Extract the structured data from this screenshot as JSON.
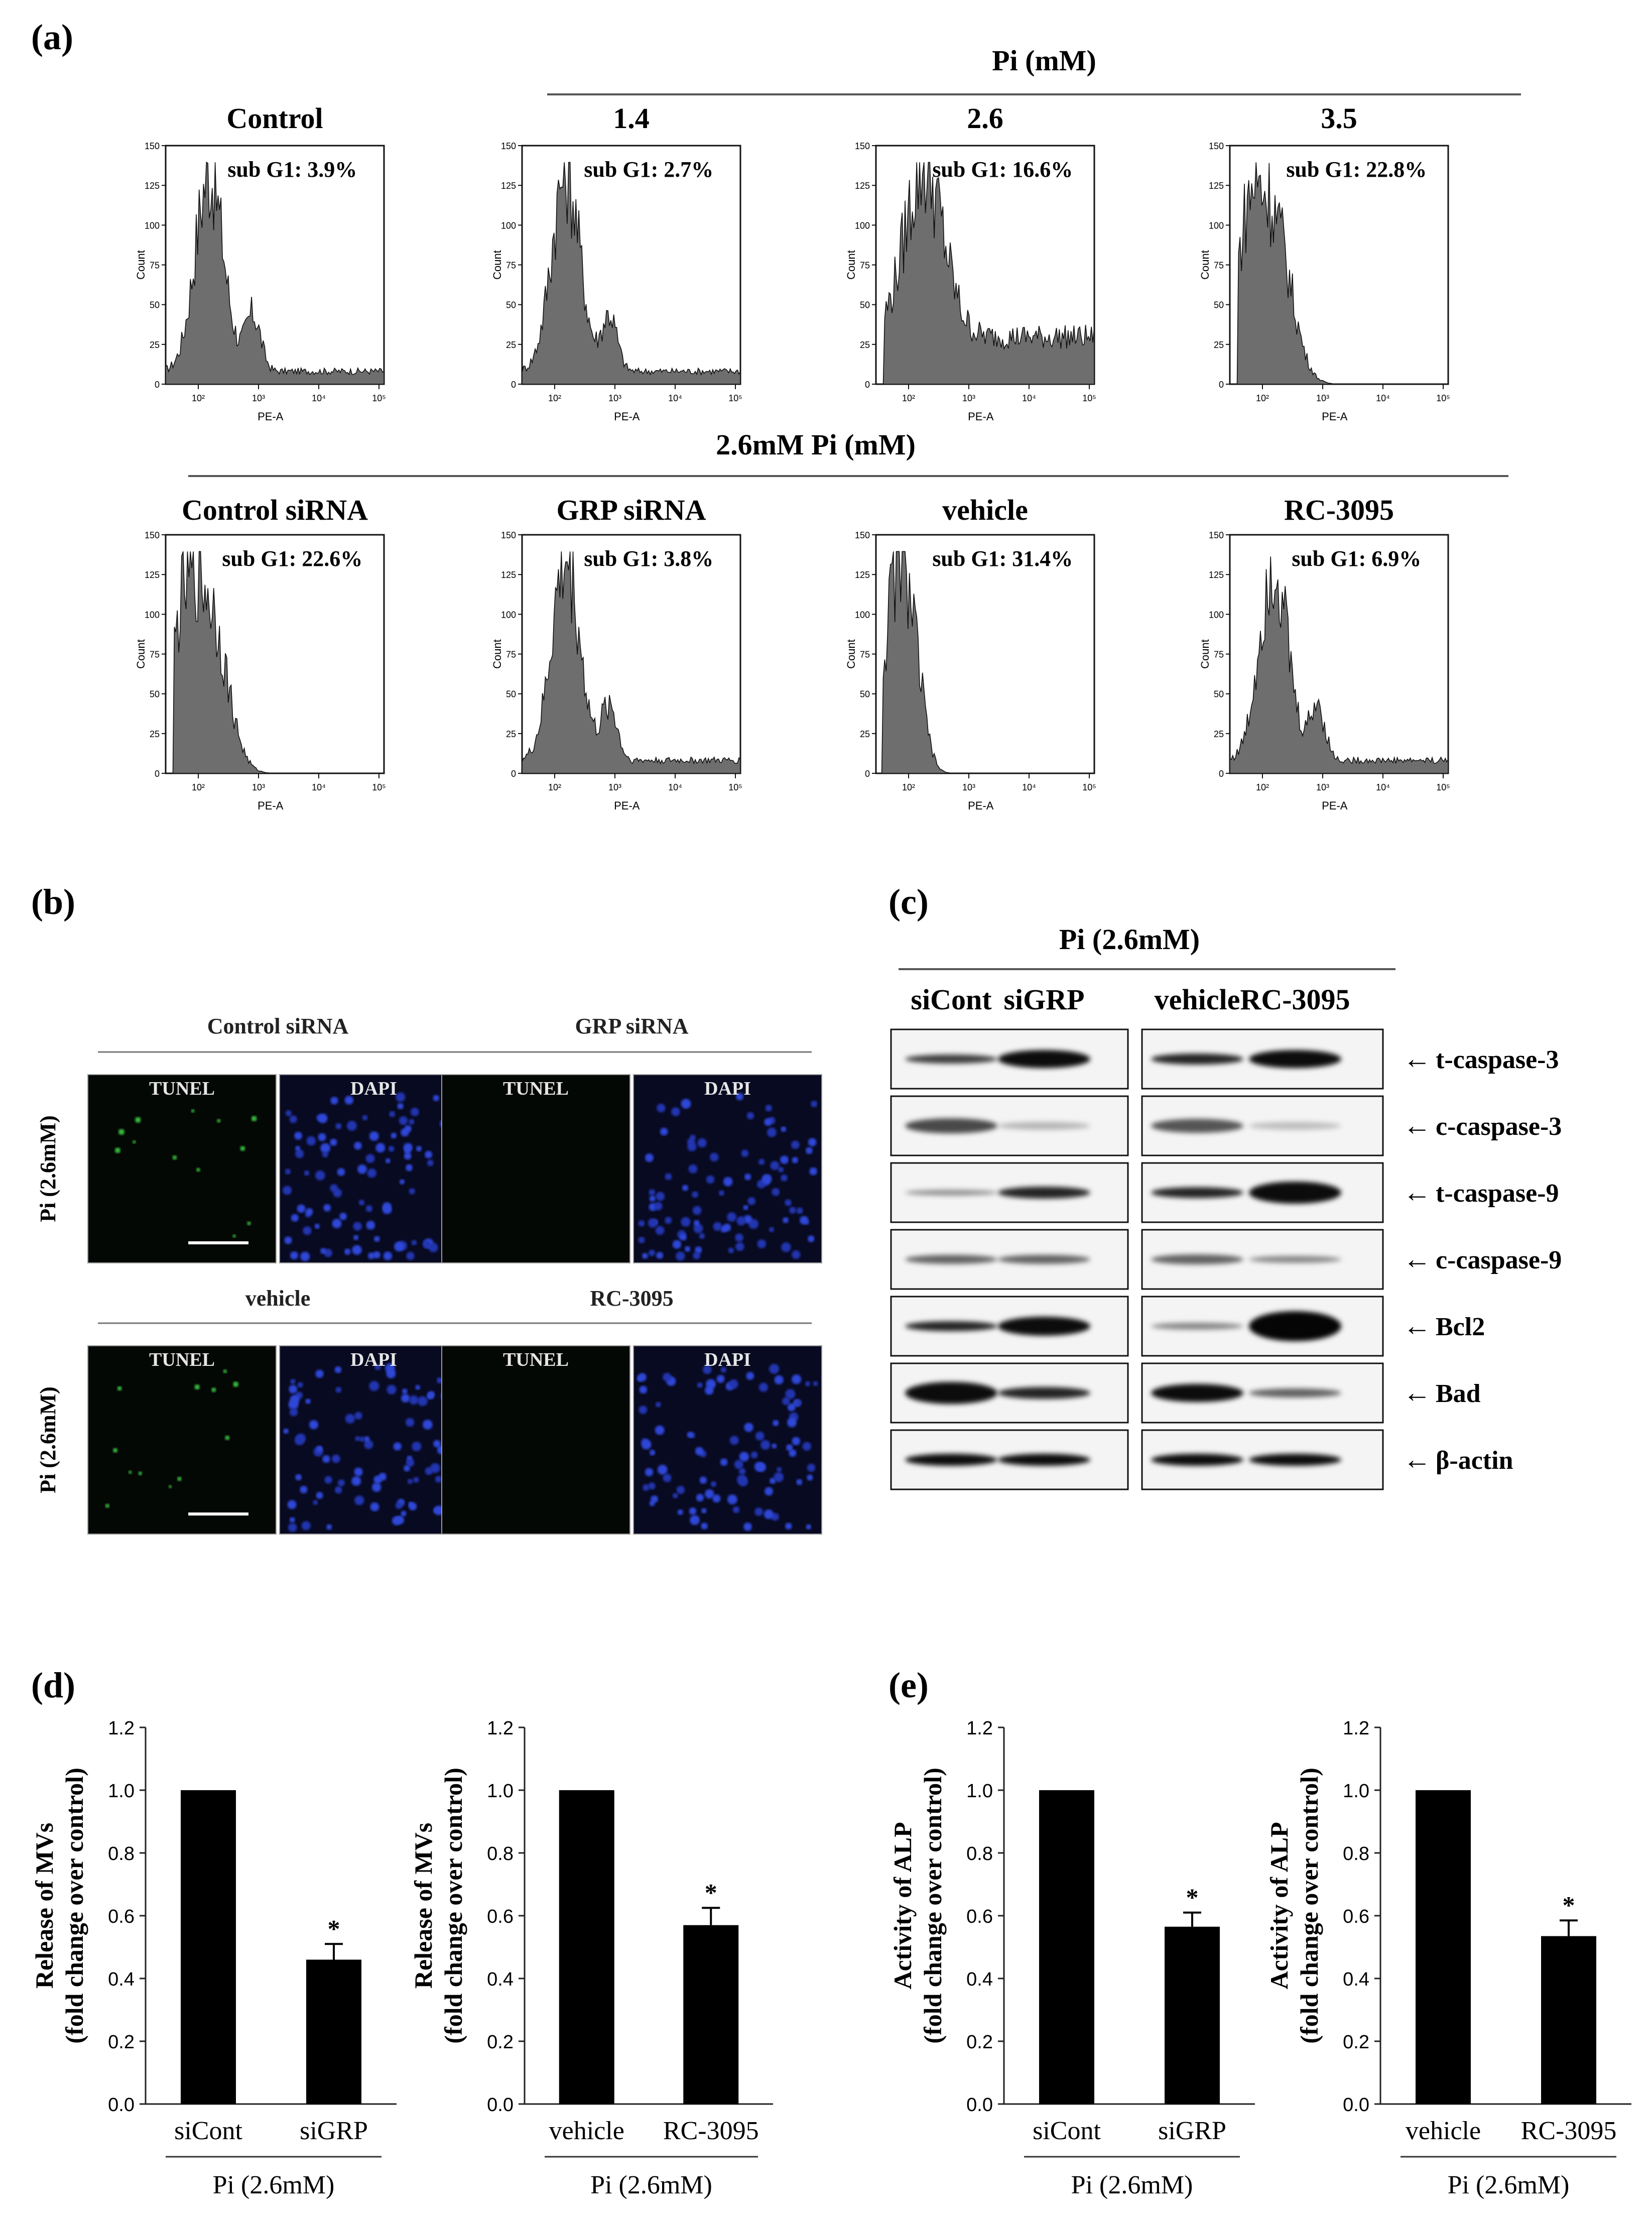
{
  "figure": {
    "panel_labels": {
      "a": "(a)",
      "b": "(b)",
      "c": "(c)",
      "d": "(d)",
      "e": "(e)"
    }
  },
  "panel_a": {
    "pi_header": "Pi (mM)",
    "second_header": "2.6mM Pi (mM)",
    "histograms": [
      {
        "title": "Control",
        "subg1": "sub G1: 3.9%",
        "shape": "normal"
      },
      {
        "title": "1.4",
        "subg1": "sub G1: 2.7%",
        "shape": "normal"
      },
      {
        "title": "2.6",
        "subg1": "sub G1: 16.6%",
        "shape": "apop1"
      },
      {
        "title": "3.5",
        "subg1": "sub G1: 22.8%",
        "shape": "apop2"
      },
      {
        "title": "Control siRNA",
        "subg1": "sub G1: 22.6%",
        "shape": "apop2"
      },
      {
        "title": "GRP siRNA",
        "subg1": "sub G1: 3.8%",
        "shape": "normal"
      },
      {
        "title": "vehicle",
        "subg1": "sub G1: 31.4%",
        "shape": "apop3"
      },
      {
        "title": "RC-3095",
        "subg1": "sub G1: 6.9%",
        "shape": "normal"
      }
    ],
    "y_axis_label": "Count",
    "y_ticks": [
      "0",
      "25",
      "50",
      "75",
      "100",
      "125",
      "150"
    ],
    "x_axis_label": "PE-A",
    "x_ticks": [
      "10²",
      "10³",
      "10⁴",
      "10⁵"
    ]
  },
  "panel_b": {
    "row_label": "Pi (2.6mM)",
    "groups": [
      "Control siRNA",
      "GRP siRNA",
      "vehicle",
      "RC-3095"
    ],
    "image_labels": {
      "tunel": "TUNEL",
      "dapi": "DAPI"
    }
  },
  "panel_c": {
    "header": "Pi (2.6mM)",
    "lanes": [
      "siCont",
      "siGRP",
      "vehicle",
      "RC-3095"
    ],
    "proteins": [
      "t-caspase-3",
      "c-caspase-3",
      "t-caspase-9",
      "c-caspase-9",
      "Bcl2",
      "Bad",
      "β-actin"
    ],
    "arrow": "←"
  },
  "chart_data": [
    {
      "type": "bar",
      "panel": "d",
      "categories": [
        "siCont",
        "siGRP"
      ],
      "values": [
        1.0,
        0.46
      ],
      "errors": [
        0,
        0.05
      ],
      "significance": [
        "",
        "*"
      ],
      "ylabel": "Release of MVs",
      "ylabel2": "(fold change over control)",
      "xgroup": "Pi (2.6mM)",
      "ylim": [
        0,
        1.2
      ],
      "yticks": [
        "0.0",
        "0.2",
        "0.4",
        "0.6",
        "0.8",
        "1.0",
        "1.2"
      ]
    },
    {
      "type": "bar",
      "panel": "d",
      "categories": [
        "vehicle",
        "RC-3095"
      ],
      "values": [
        1.0,
        0.57
      ],
      "errors": [
        0,
        0.055
      ],
      "significance": [
        "",
        "*"
      ],
      "ylabel": "Release of MVs",
      "ylabel2": "(fold change over control)",
      "xgroup": "Pi (2.6mM)",
      "ylim": [
        0,
        1.2
      ],
      "yticks": [
        "0.0",
        "0.2",
        "0.4",
        "0.6",
        "0.8",
        "1.0",
        "1.2"
      ]
    },
    {
      "type": "bar",
      "panel": "e",
      "categories": [
        "siCont",
        "siGRP"
      ],
      "values": [
        1.0,
        0.565
      ],
      "errors": [
        0,
        0.045
      ],
      "significance": [
        "",
        "*"
      ],
      "ylabel": "Activity of  ALP",
      "ylabel2": "(fold change over control)",
      "xgroup": "Pi (2.6mM)",
      "ylim": [
        0,
        1.2
      ],
      "yticks": [
        "0.0",
        "0.2",
        "0.4",
        "0.6",
        "0.8",
        "1.0",
        "1.2"
      ]
    },
    {
      "type": "bar",
      "panel": "e",
      "categories": [
        "vehicle",
        "RC-3095"
      ],
      "values": [
        1.0,
        0.535
      ],
      "errors": [
        0,
        0.05
      ],
      "significance": [
        "",
        "*"
      ],
      "ylabel": "Activity of  ALP",
      "ylabel2": "(fold change over control)",
      "xgroup": "Pi (2.6mM)",
      "ylim": [
        0,
        1.2
      ],
      "yticks": [
        "0.0",
        "0.2",
        "0.4",
        "0.6",
        "0.8",
        "1.0",
        "1.2"
      ]
    }
  ]
}
